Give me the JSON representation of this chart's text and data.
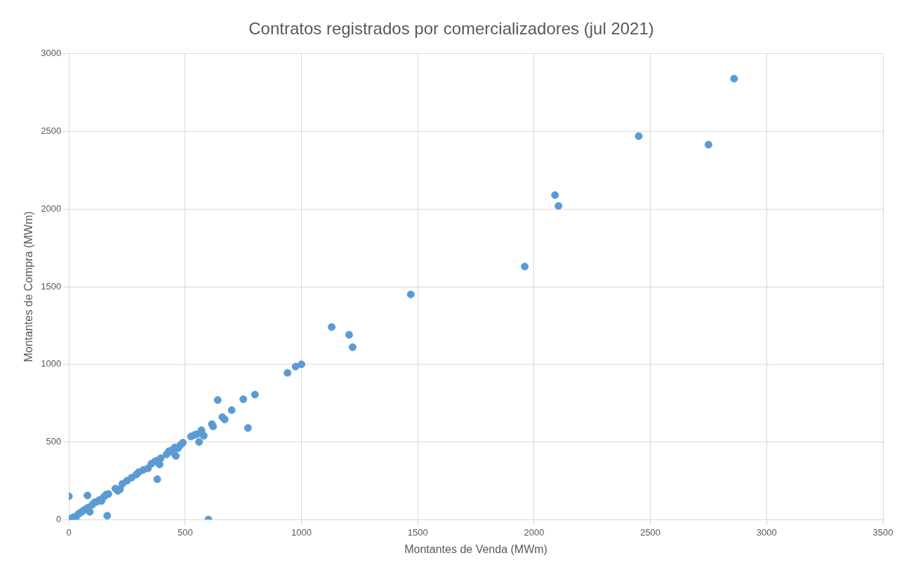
{
  "chart_data": {
    "type": "scatter",
    "title": "Contratos registrados por comercializadores (jul 2021)",
    "xlabel": "Montantes de Venda (MWm)",
    "ylabel": "Montantes de Compra (MWm)",
    "x": [
      0,
      80,
      165,
      600,
      380,
      770,
      640,
      750,
      800,
      700,
      660,
      670,
      615,
      620,
      580,
      560,
      570,
      540,
      525,
      550,
      940,
      975,
      1000,
      1130,
      1205,
      1220,
      1470,
      1960,
      2090,
      2105,
      2450,
      2750,
      2860,
      90,
      30,
      10,
      5,
      15,
      20,
      40,
      50,
      60,
      70,
      80,
      100,
      110,
      120,
      130,
      140,
      150,
      160,
      170,
      200,
      210,
      220,
      230,
      250,
      270,
      290,
      300,
      320,
      340,
      355,
      370,
      380,
      390,
      395,
      420,
      430,
      440,
      450,
      460,
      470,
      480,
      490,
      455
    ],
    "values": [
      150,
      155,
      25,
      0,
      260,
      590,
      770,
      775,
      805,
      705,
      660,
      645,
      615,
      600,
      540,
      500,
      575,
      545,
      535,
      550,
      945,
      985,
      1000,
      1240,
      1190,
      1110,
      1450,
      1630,
      2090,
      2020,
      2470,
      2415,
      2840,
      50,
      0,
      0,
      5,
      10,
      15,
      35,
      45,
      55,
      65,
      75,
      95,
      110,
      115,
      125,
      120,
      145,
      160,
      165,
      200,
      185,
      195,
      230,
      250,
      270,
      290,
      305,
      320,
      330,
      360,
      375,
      380,
      355,
      395,
      420,
      440,
      445,
      430,
      410,
      460,
      480,
      495,
      465
    ],
    "color": "#5b9bd5",
    "marker": "circle",
    "xlim": [
      0,
      3500
    ],
    "xticks": [
      0,
      500,
      1000,
      1500,
      2000,
      2500,
      3000,
      3500
    ],
    "ylim": [
      0,
      3000
    ],
    "yticks": [
      0,
      500,
      1000,
      1500,
      2000,
      2500,
      3000
    ],
    "grid": true,
    "legend": false
  }
}
